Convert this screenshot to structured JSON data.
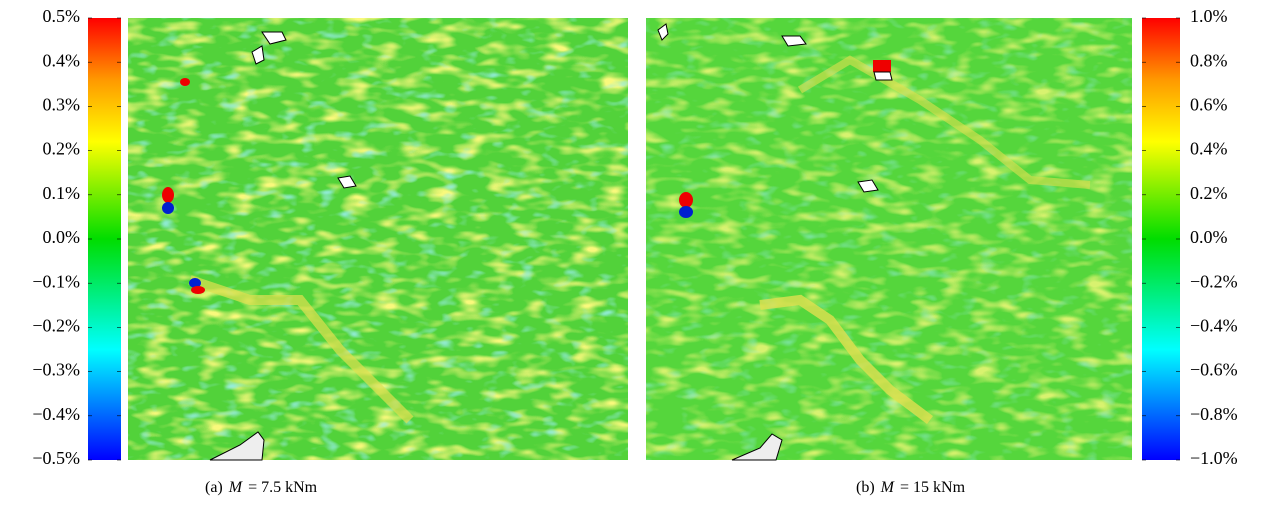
{
  "panels": [
    {
      "caption": {
        "label": "(a)",
        "variable": "M",
        "rest": "= 7.5 kNm"
      },
      "colorbar": {
        "lim": [
          -0.5,
          0.5
        ],
        "ticks": [
          {
            "value": 0.5,
            "label": "0.5%"
          },
          {
            "value": 0.4,
            "label": "0.4%"
          },
          {
            "value": 0.3,
            "label": "0.3%"
          },
          {
            "value": 0.2,
            "label": "0.2%"
          },
          {
            "value": 0.1,
            "label": "0.1%"
          },
          {
            "value": 0.0,
            "label": "0.0%"
          },
          {
            "value": -0.1,
            "label": "−0.1%"
          },
          {
            "value": -0.2,
            "label": "−0.2%"
          },
          {
            "value": -0.3,
            "label": "−0.3%"
          },
          {
            "value": -0.4,
            "label": "−0.4%"
          },
          {
            "value": -0.5,
            "label": "−0.5%"
          }
        ]
      }
    },
    {
      "caption": {
        "label": "(b)",
        "variable": "M",
        "rest": "= 15 kNm"
      },
      "colorbar": {
        "lim": [
          -1.0,
          1.0
        ],
        "ticks": [
          {
            "value": 1.0,
            "label": "1.0%"
          },
          {
            "value": 0.8,
            "label": "0.8%"
          },
          {
            "value": 0.6,
            "label": "0.6%"
          },
          {
            "value": 0.4,
            "label": "0.4%"
          },
          {
            "value": 0.2,
            "label": "0.2%"
          },
          {
            "value": 0.0,
            "label": "0.0%"
          },
          {
            "value": -0.2,
            "label": "−0.2%"
          },
          {
            "value": -0.4,
            "label": "−0.4%"
          },
          {
            "value": -0.6,
            "label": "−0.6%"
          },
          {
            "value": -0.8,
            "label": "−0.8%"
          },
          {
            "value": -1.0,
            "label": "−1.0%"
          }
        ]
      }
    }
  ]
}
